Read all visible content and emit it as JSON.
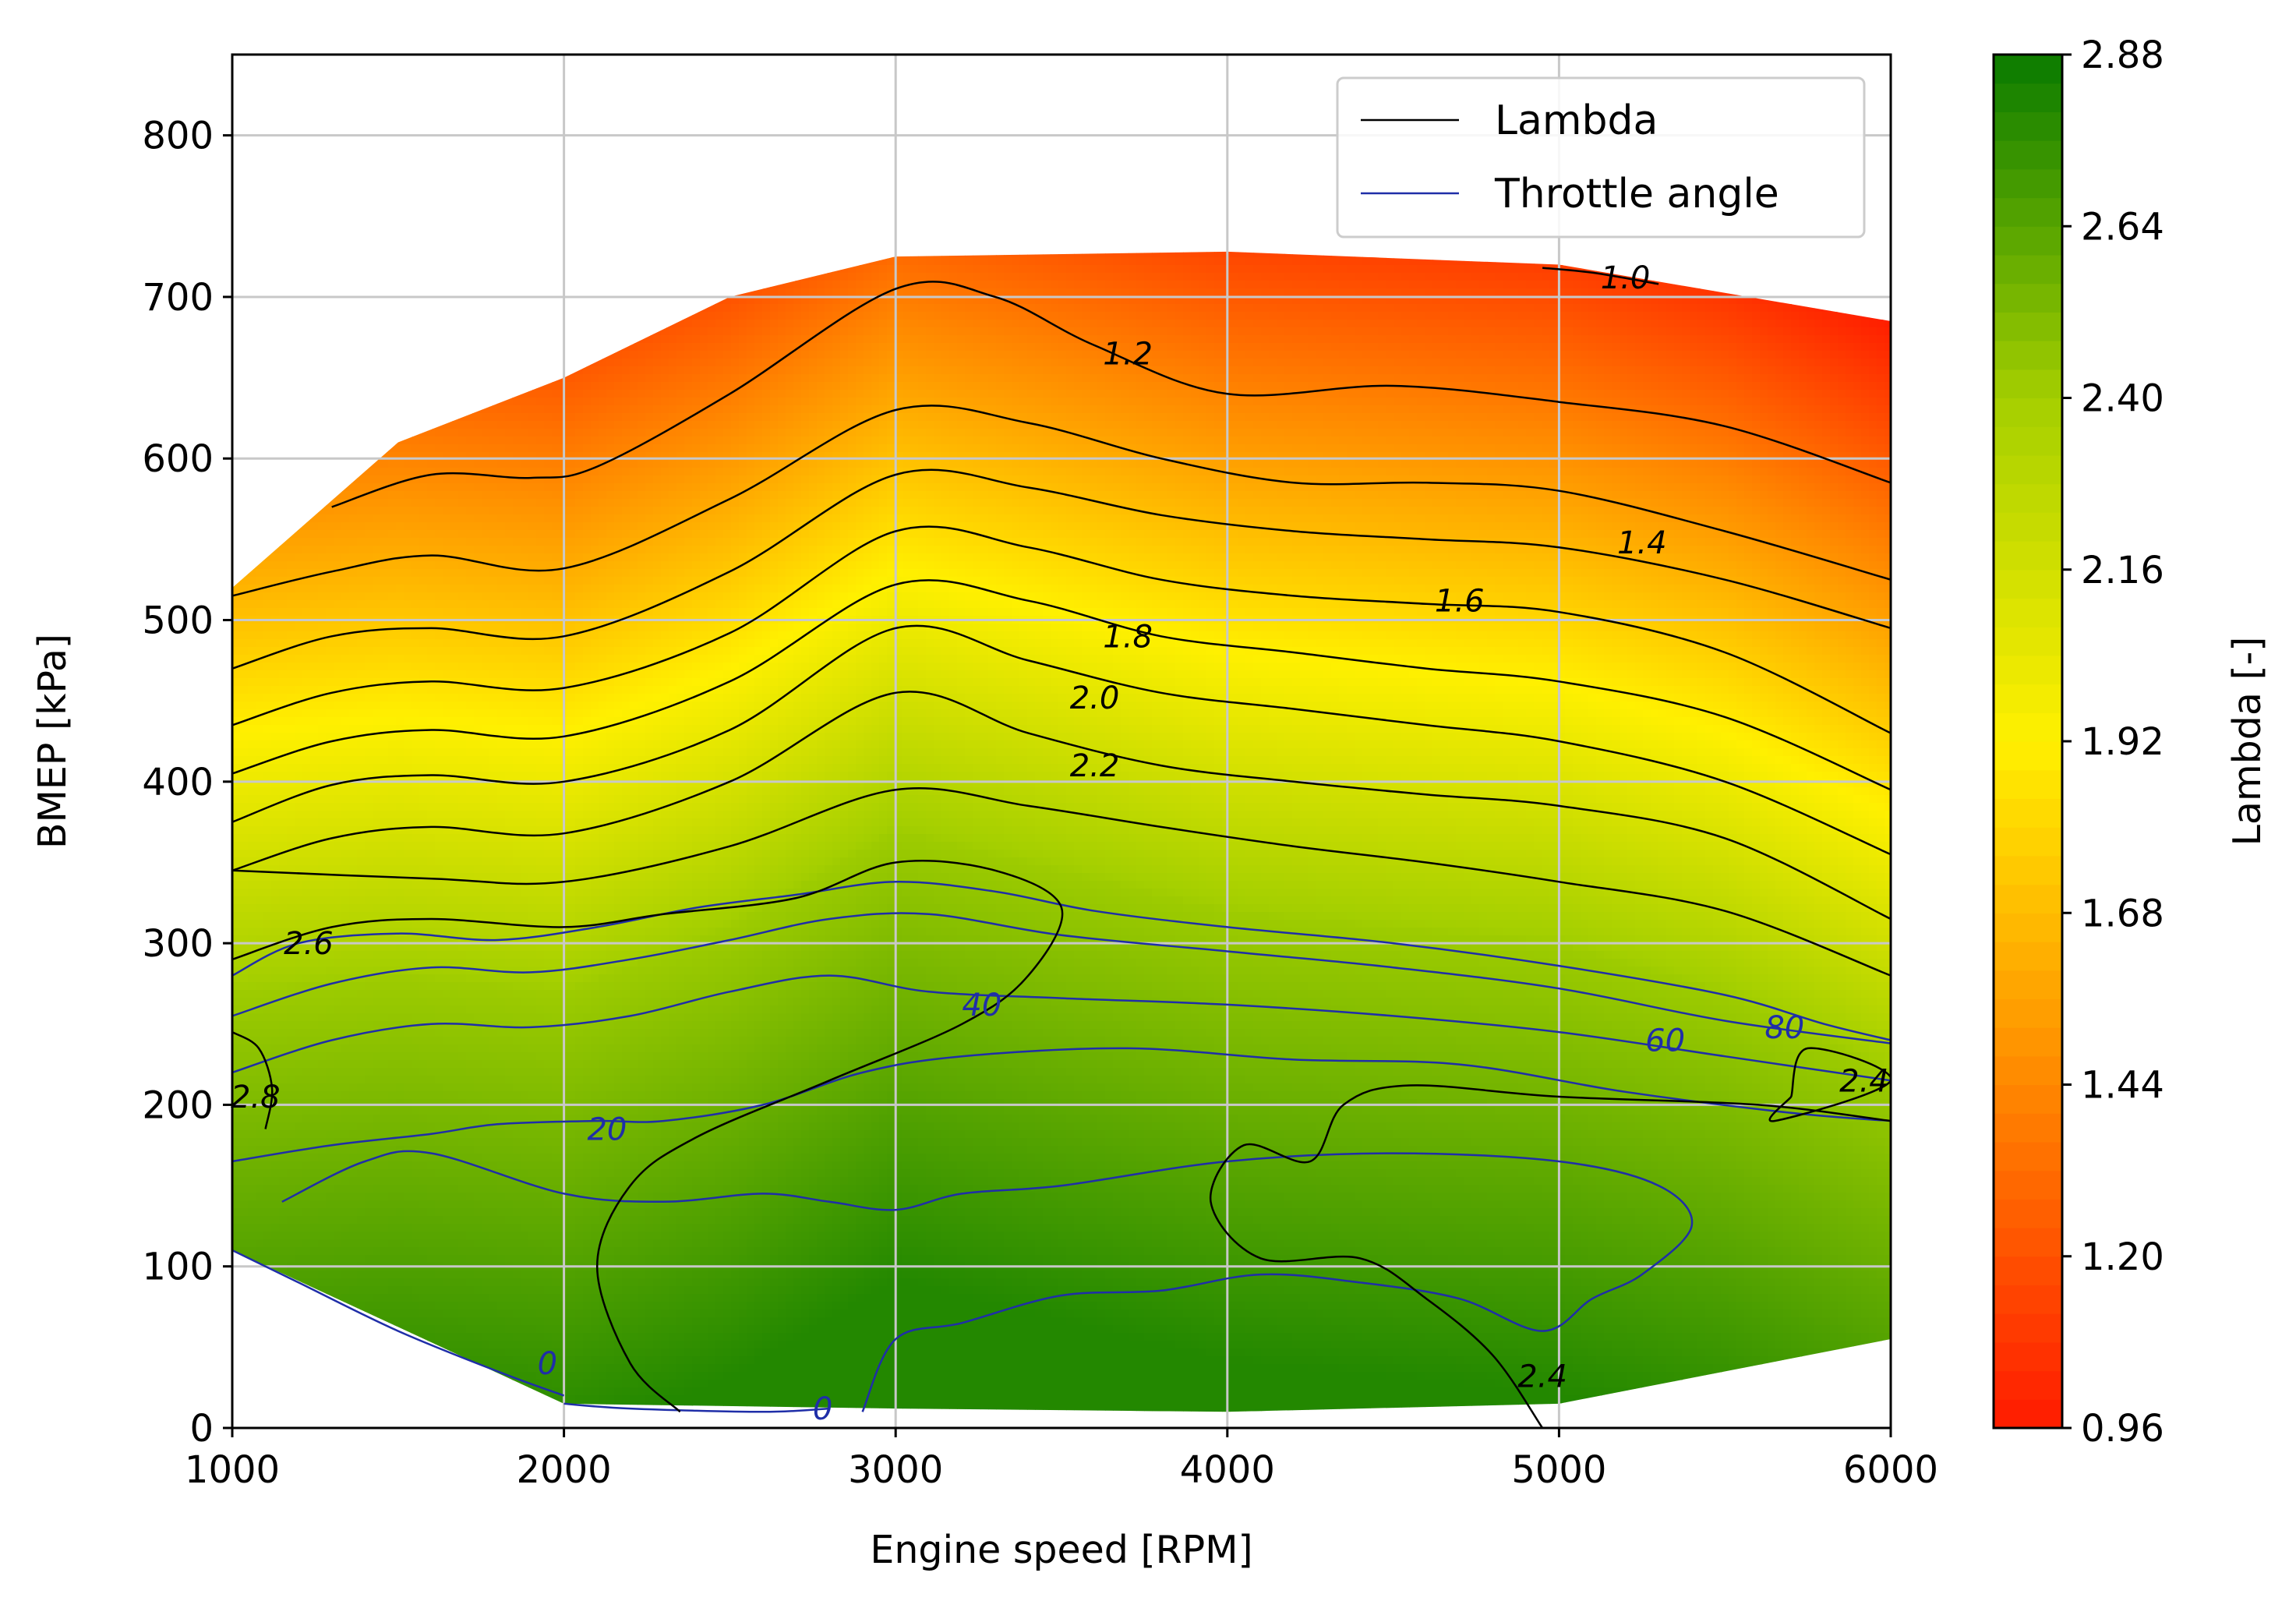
{
  "chart_data": {
    "type": "contour",
    "xlabel": "Engine speed [RPM]",
    "ylabel": "BMEP [kPa]",
    "xlim": [
      1000,
      6000
    ],
    "ylim": [
      0,
      850
    ],
    "xticks": [
      1000,
      2000,
      3000,
      4000,
      5000,
      6000
    ],
    "yticks": [
      0,
      100,
      200,
      300,
      400,
      500,
      600,
      700,
      800
    ],
    "grid": true,
    "legend": {
      "placement": "top-right",
      "entries": [
        {
          "label": "Lambda",
          "color": "#000000"
        },
        {
          "label": "Throttle angle",
          "color": "#1f2ea8"
        }
      ]
    },
    "colorbar": {
      "label": "Lambda [-]",
      "range": [
        0.96,
        2.88
      ],
      "ticks": [
        "0.96",
        "1.20",
        "1.44",
        "1.68",
        "1.92",
        "2.16",
        "2.40",
        "2.64",
        "2.88"
      ],
      "colormap": [
        "#ff1a00",
        "#ff8800",
        "#fff000",
        "#a4cf00",
        "#0a7a00"
      ]
    },
    "domain_boundary": {
      "top": [
        [
          1000,
          520
        ],
        [
          1500,
          610
        ],
        [
          2000,
          650
        ],
        [
          2500,
          700
        ],
        [
          3000,
          725
        ],
        [
          4000,
          728
        ],
        [
          5000,
          720
        ],
        [
          6000,
          685
        ]
      ],
      "bottom": [
        [
          6000,
          55
        ],
        [
          5000,
          15
        ],
        [
          4000,
          10
        ],
        [
          3000,
          12
        ],
        [
          2000,
          15
        ],
        [
          1000,
          110
        ]
      ]
    },
    "lambda_field_axis": {
      "x": [
        1000,
        1500,
        2000,
        2500,
        3000,
        3500,
        4000,
        4500,
        5000,
        5500,
        6000
      ],
      "base_bmep": [
        430,
        440,
        430,
        470,
        530,
        505,
        480,
        470,
        460,
        430,
        380
      ]
    },
    "lambda_contours": [
      {
        "level": "1.0",
        "label_pos": [
          5200,
          712
        ],
        "points": [
          [
            4950,
            718
          ],
          [
            5100,
            715
          ],
          [
            5300,
            708
          ]
        ]
      },
      {
        "level": "1.2",
        "label_pos": [
          3700,
          665
        ],
        "points": [
          [
            1300,
            570
          ],
          [
            1600,
            590
          ],
          [
            1900,
            588
          ],
          [
            2100,
            595
          ],
          [
            2500,
            640
          ],
          [
            3000,
            705
          ],
          [
            3300,
            700
          ],
          [
            3600,
            670
          ],
          [
            4000,
            640
          ],
          [
            4500,
            645
          ],
          [
            5000,
            635
          ],
          [
            5500,
            620
          ],
          [
            6000,
            585
          ]
        ]
      },
      {
        "level": "",
        "points": [
          [
            1000,
            515
          ],
          [
            1300,
            530
          ],
          [
            1600,
            540
          ],
          [
            2000,
            532
          ],
          [
            2500,
            575
          ],
          [
            3000,
            630
          ],
          [
            3400,
            622
          ],
          [
            3800,
            600
          ],
          [
            4200,
            585
          ],
          [
            4600,
            585
          ],
          [
            5000,
            580
          ],
          [
            5500,
            555
          ],
          [
            6000,
            525
          ]
        ]
      },
      {
        "level": "1.4",
        "label_pos": [
          5250,
          548
        ],
        "points": [
          [
            1000,
            470
          ],
          [
            1300,
            490
          ],
          [
            1600,
            495
          ],
          [
            2000,
            490
          ],
          [
            2500,
            530
          ],
          [
            3000,
            590
          ],
          [
            3400,
            582
          ],
          [
            3800,
            565
          ],
          [
            4200,
            555
          ],
          [
            4600,
            550
          ],
          [
            5000,
            545
          ],
          [
            5500,
            525
          ],
          [
            6000,
            495
          ]
        ]
      },
      {
        "level": "1.6",
        "label_pos": [
          4700,
          512
        ],
        "points": [
          [
            1000,
            435
          ],
          [
            1300,
            455
          ],
          [
            1600,
            462
          ],
          [
            2000,
            458
          ],
          [
            2500,
            492
          ],
          [
            3000,
            555
          ],
          [
            3400,
            545
          ],
          [
            3800,
            525
          ],
          [
            4200,
            515
          ],
          [
            4600,
            510
          ],
          [
            5000,
            505
          ],
          [
            5500,
            480
          ],
          [
            6000,
            430
          ]
        ]
      },
      {
        "level": "1.8",
        "label_pos": [
          3700,
          490
        ],
        "points": [
          [
            1000,
            405
          ],
          [
            1300,
            425
          ],
          [
            1600,
            432
          ],
          [
            2000,
            428
          ],
          [
            2500,
            462
          ],
          [
            3000,
            522
          ],
          [
            3400,
            512
          ],
          [
            3800,
            490
          ],
          [
            4200,
            480
          ],
          [
            4600,
            470
          ],
          [
            5000,
            462
          ],
          [
            5500,
            440
          ],
          [
            6000,
            395
          ]
        ]
      },
      {
        "level": "2.0",
        "label_pos": [
          3600,
          452
        ],
        "points": [
          [
            1000,
            375
          ],
          [
            1300,
            398
          ],
          [
            1600,
            404
          ],
          [
            2000,
            400
          ],
          [
            2500,
            432
          ],
          [
            3000,
            495
          ],
          [
            3400,
            475
          ],
          [
            3800,
            455
          ],
          [
            4200,
            445
          ],
          [
            4600,
            435
          ],
          [
            5000,
            425
          ],
          [
            5500,
            400
          ],
          [
            6000,
            355
          ]
        ]
      },
      {
        "level": "2.2",
        "label_pos": [
          3600,
          410
        ],
        "points": [
          [
            1000,
            345
          ],
          [
            1300,
            365
          ],
          [
            1600,
            372
          ],
          [
            2000,
            368
          ],
          [
            2500,
            400
          ],
          [
            3000,
            455
          ],
          [
            3400,
            430
          ],
          [
            3800,
            410
          ],
          [
            4200,
            400
          ],
          [
            4600,
            392
          ],
          [
            5000,
            385
          ],
          [
            5500,
            365
          ],
          [
            6000,
            315
          ]
        ]
      },
      {
        "level": "2.4",
        "label_pos": [
          5920,
          215
        ],
        "points": [
          [
            1000,
            345
          ],
          [
            1600,
            340
          ],
          [
            2000,
            338
          ],
          [
            2500,
            360
          ],
          [
            3000,
            395
          ],
          [
            3400,
            385
          ],
          [
            3800,
            372
          ],
          [
            4200,
            360
          ],
          [
            4600,
            350
          ],
          [
            5000,
            338
          ],
          [
            5500,
            320
          ],
          [
            6000,
            280
          ]
        ]
      },
      {
        "level": "2.6",
        "label_pos": [
          1230,
          300
        ],
        "points": [
          [
            1000,
            290
          ],
          [
            1300,
            310
          ],
          [
            1600,
            315
          ],
          [
            2000,
            310
          ],
          [
            2300,
            318
          ],
          [
            2700,
            328
          ],
          [
            3000,
            350
          ],
          [
            3300,
            345
          ],
          [
            3500,
            322
          ],
          [
            3400,
            280
          ],
          [
            3200,
            250
          ],
          [
            2800,
            215
          ],
          [
            2400,
            180
          ],
          [
            2200,
            150
          ],
          [
            2100,
            100
          ],
          [
            2200,
            40
          ],
          [
            2350,
            10
          ]
        ]
      },
      {
        "level": "2.8",
        "label_pos": [
          1070,
          205
        ],
        "points": [
          [
            1000,
            245
          ],
          [
            1080,
            235
          ],
          [
            1120,
            210
          ],
          [
            1100,
            185
          ]
        ]
      },
      {
        "level": "2.4",
        "label_pos": [
          4950,
          32
        ],
        "points": [
          [
            4950,
            0
          ],
          [
            4800,
            45
          ],
          [
            4600,
            80
          ],
          [
            4400,
            105
          ],
          [
            4100,
            105
          ],
          [
            3950,
            140
          ],
          [
            4050,
            175
          ],
          [
            4250,
            165
          ],
          [
            4350,
            200
          ],
          [
            4550,
            212
          ],
          [
            5000,
            205
          ],
          [
            5600,
            200
          ],
          [
            6000,
            190
          ]
        ]
      },
      {
        "level": "",
        "points": [
          [
            5700,
            205
          ],
          [
            5750,
            235
          ],
          [
            6000,
            215
          ],
          [
            5650,
            190
          ],
          [
            5700,
            205
          ]
        ]
      }
    ],
    "throttle_contours": [
      {
        "level": "0",
        "label_pos": [
          1950,
          40
        ],
        "points": [
          [
            1150,
            140
          ],
          [
            1400,
            165
          ],
          [
            1600,
            170
          ],
          [
            2000,
            145
          ],
          [
            2300,
            140
          ],
          [
            2600,
            145
          ],
          [
            2800,
            140
          ],
          [
            3000,
            135
          ],
          [
            3200,
            145
          ],
          [
            3500,
            150
          ],
          [
            4000,
            165
          ],
          [
            4500,
            170
          ],
          [
            5000,
            165
          ],
          [
            5300,
            150
          ],
          [
            5400,
            125
          ],
          [
            5250,
            95
          ],
          [
            5100,
            80
          ],
          [
            4950,
            60
          ],
          [
            4700,
            80
          ],
          [
            4400,
            90
          ],
          [
            4100,
            95
          ],
          [
            3800,
            85
          ],
          [
            3500,
            82
          ],
          [
            3200,
            65
          ],
          [
            3000,
            55
          ],
          [
            2900,
            10
          ]
        ]
      },
      {
        "level": "0",
        "label_pos": [
          2780,
          12
        ],
        "points": [
          [
            2000,
            15
          ],
          [
            2200,
            12
          ],
          [
            2600,
            10
          ],
          [
            2800,
            12
          ]
        ]
      },
      {
        "level": "",
        "points": [
          [
            1000,
            110
          ],
          [
            1200,
            90
          ],
          [
            1500,
            60
          ],
          [
            1800,
            35
          ],
          [
            2000,
            20
          ]
        ]
      },
      {
        "level": "20",
        "label_pos": [
          2130,
          185
        ],
        "points": [
          [
            1000,
            165
          ],
          [
            1300,
            175
          ],
          [
            1600,
            182
          ],
          [
            1800,
            188
          ],
          [
            2100,
            190
          ],
          [
            2300,
            190
          ],
          [
            2600,
            200
          ],
          [
            2900,
            220
          ],
          [
            3200,
            230
          ],
          [
            3700,
            235
          ],
          [
            4200,
            228
          ],
          [
            4700,
            225
          ],
          [
            5200,
            208
          ],
          [
            5700,
            195
          ],
          [
            6000,
            190
          ]
        ]
      },
      {
        "level": "40",
        "label_pos": [
          3260,
          262
        ],
        "points": [
          [
            1000,
            220
          ],
          [
            1300,
            240
          ],
          [
            1600,
            250
          ],
          [
            1900,
            248
          ],
          [
            2200,
            255
          ],
          [
            2500,
            270
          ],
          [
            2800,
            280
          ],
          [
            3100,
            270
          ],
          [
            3500,
            266
          ],
          [
            4000,
            262
          ],
          [
            4500,
            255
          ],
          [
            5000,
            245
          ],
          [
            5500,
            230
          ],
          [
            6000,
            215
          ]
        ]
      },
      {
        "level": "60",
        "label_pos": [
          5320,
          240
        ],
        "points": [
          [
            1000,
            255
          ],
          [
            1300,
            275
          ],
          [
            1600,
            285
          ],
          [
            1900,
            282
          ],
          [
            2200,
            290
          ],
          [
            2500,
            302
          ],
          [
            2800,
            315
          ],
          [
            3100,
            318
          ],
          [
            3500,
            305
          ],
          [
            4000,
            295
          ],
          [
            4500,
            285
          ],
          [
            5000,
            272
          ],
          [
            5500,
            252
          ],
          [
            6000,
            238
          ]
        ]
      },
      {
        "level": "80",
        "label_pos": [
          5680,
          248
        ],
        "points": [
          [
            1000,
            280
          ],
          [
            1200,
            300
          ],
          [
            1500,
            306
          ],
          [
            1800,
            302
          ],
          [
            2100,
            310
          ],
          [
            2400,
            322
          ],
          [
            2700,
            330
          ],
          [
            3000,
            338
          ],
          [
            3300,
            332
          ],
          [
            3600,
            320
          ],
          [
            4000,
            310
          ],
          [
            4500,
            300
          ],
          [
            5000,
            286
          ],
          [
            5500,
            268
          ],
          [
            5800,
            250
          ],
          [
            6000,
            240
          ]
        ]
      }
    ]
  }
}
